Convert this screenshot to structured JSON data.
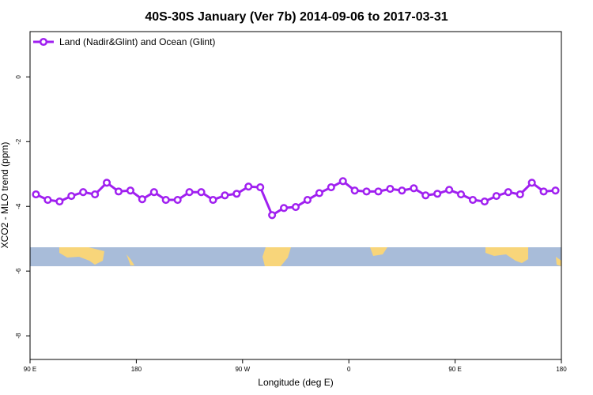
{
  "chart_data": {
    "type": "line",
    "title": "40S-30S January (Ver 7b)   2014-09-06 to 2017-03-31",
    "x_label": "Longitude (deg E)",
    "y_label": "XCO2 - MLO trend (ppm)",
    "x": [
      95,
      105,
      115,
      125,
      135,
      145,
      155,
      165,
      175,
      185,
      195,
      205,
      215,
      225,
      235,
      245,
      255,
      265,
      275,
      285,
      295,
      305,
      315,
      325,
      335,
      345,
      355,
      365,
      375,
      385,
      395,
      405,
      415,
      425,
      435,
      445,
      455,
      465,
      475,
      485,
      495,
      505,
      515,
      525,
      535
    ],
    "series": [
      {
        "name": "Land (Nadir&Glint) and Ocean (Glint)",
        "color": "#a020f0",
        "values": [
          -3.63,
          -3.8,
          -3.85,
          -3.68,
          -3.56,
          -3.63,
          -3.27,
          -3.54,
          -3.51,
          -3.78,
          -3.56,
          -3.8,
          -3.8,
          -3.56,
          -3.56,
          -3.8,
          -3.66,
          -3.61,
          -3.39,
          -3.41,
          -4.27,
          -4.05,
          -4.02,
          -3.8,
          -3.59,
          -3.41,
          -3.22,
          -3.51,
          -3.54,
          -3.54,
          -3.46,
          -3.51,
          -3.44,
          -3.66,
          -3.61,
          -3.49,
          -3.63,
          -3.8,
          -3.85,
          -3.68,
          -3.56,
          -3.63,
          -3.27,
          -3.54,
          -3.51
        ]
      }
    ],
    "xlim": [
      90,
      540
    ],
    "xticks": [
      {
        "value": 90,
        "label": "90 E"
      },
      180,
      {
        "value": 270,
        "label": "90 W"
      },
      {
        "value": 360,
        "label": "0"
      },
      {
        "value": 450,
        "label": "90 E"
      },
      {
        "value": 540,
        "label": "180"
      }
    ],
    "ylim": [
      -8.73,
      1.4
    ],
    "yticks": [
      0,
      -2,
      -4,
      -6,
      -8
    ],
    "legend": "top-left"
  }
}
